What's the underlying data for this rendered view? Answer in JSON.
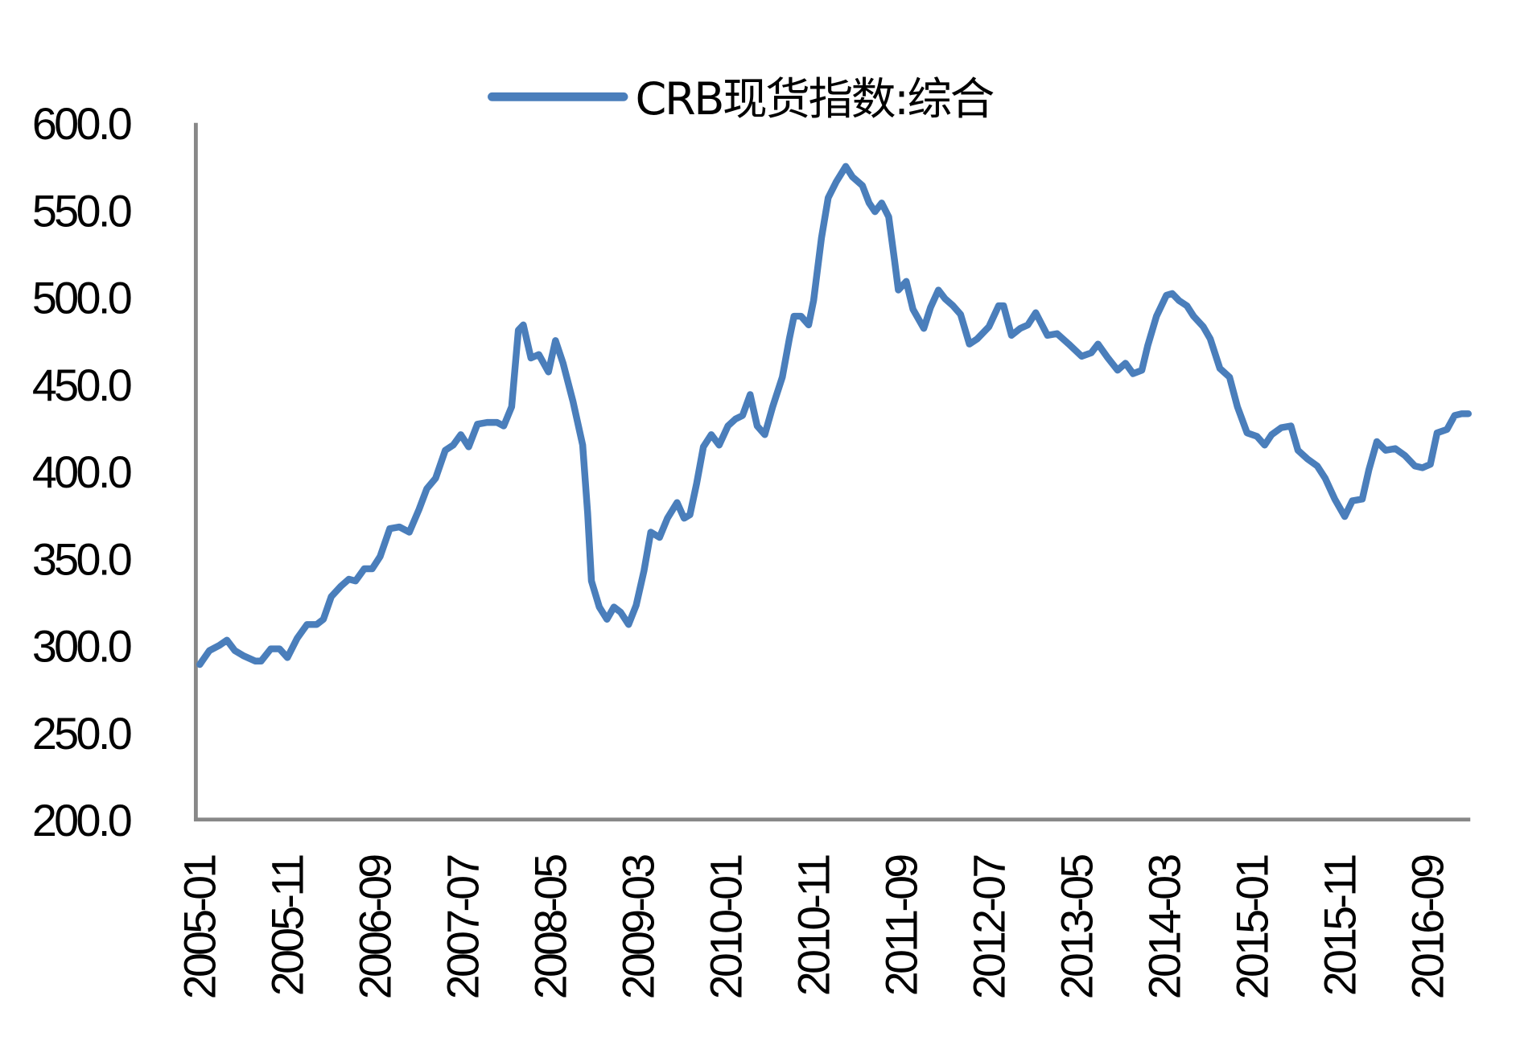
{
  "chart_data": {
    "type": "line",
    "title": "",
    "xlabel": "",
    "ylabel": "",
    "ylim": [
      200,
      600
    ],
    "yticks": [
      "200.0",
      "250.0",
      "300.0",
      "350.0",
      "400.0",
      "450.0",
      "500.0",
      "550.0",
      "600.0"
    ],
    "xticks": [
      "2005-01",
      "2005-11",
      "2006-09",
      "2007-07",
      "2008-05",
      "2009-03",
      "2010-01",
      "2010-11",
      "2011-09",
      "2012-07",
      "2013-05",
      "2014-03",
      "2015-01",
      "2015-11",
      "2016-09"
    ],
    "grid": false,
    "legend_position": "top-center",
    "series": [
      {
        "name": "CRB现货指数:综合",
        "color": "#4a7ebb",
        "dates": [
          "2005-01-01",
          "2005-02-04",
          "2005-03-08",
          "2005-04-04",
          "2005-05-01",
          "2005-06-01",
          "2005-07-11",
          "2005-08-01",
          "2005-09-04",
          "2005-10-04",
          "2005-11-01",
          "2005-12-04",
          "2006-01-08",
          "2006-02-11",
          "2006-03-04",
          "2006-04-01",
          "2006-05-04",
          "2006-06-01",
          "2006-06-24",
          "2006-07-24",
          "2006-08-21",
          "2006-09-18",
          "2006-10-21",
          "2006-11-24",
          "2006-12-28",
          "2007-02-01",
          "2007-02-28",
          "2007-03-28",
          "2007-05-01",
          "2007-05-28",
          "2007-06-24",
          "2007-07-21",
          "2007-08-21",
          "2007-09-24",
          "2007-10-28",
          "2007-11-21",
          "2007-12-18",
          "2008-01-11",
          "2008-01-28",
          "2008-02-24",
          "2008-03-21",
          "2008-04-24",
          "2008-05-18",
          "2008-06-14",
          "2008-07-18",
          "2008-08-21",
          "2008-09-08",
          "2008-09-21",
          "2008-10-18",
          "2008-11-14",
          "2008-12-08",
          "2009-01-01",
          "2009-01-28",
          "2009-02-24",
          "2009-03-21",
          "2009-04-14",
          "2009-05-14",
          "2009-06-11",
          "2009-07-14",
          "2009-08-08",
          "2009-08-28",
          "2009-09-21",
          "2009-10-14",
          "2009-11-11",
          "2009-12-08",
          "2010-01-08",
          "2010-02-04",
          "2010-02-28",
          "2010-03-24",
          "2010-04-18",
          "2010-05-14",
          "2010-06-11",
          "2010-07-14",
          "2010-08-08",
          "2010-08-24",
          "2010-09-18",
          "2010-10-14",
          "2010-11-01",
          "2010-11-28",
          "2010-12-21",
          "2011-01-18",
          "2011-02-21",
          "2011-03-14",
          "2011-04-18",
          "2011-05-11",
          "2011-06-01",
          "2011-06-24",
          "2011-07-18",
          "2011-08-08",
          "2011-08-21",
          "2011-09-18",
          "2011-10-11",
          "2011-11-18",
          "2011-12-11",
          "2012-01-08",
          "2012-02-01",
          "2012-02-28",
          "2012-03-24",
          "2012-04-24",
          "2012-05-21",
          "2012-07-01",
          "2012-08-04",
          "2012-08-21",
          "2012-09-18",
          "2012-10-18",
          "2012-11-14",
          "2012-12-11",
          "2013-01-21",
          "2013-02-24",
          "2013-04-04",
          "2013-05-18",
          "2013-06-21",
          "2013-07-14",
          "2013-08-18",
          "2013-09-21",
          "2013-10-18",
          "2013-11-14",
          "2013-12-14",
          "2014-01-04",
          "2014-02-04",
          "2014-03-08",
          "2014-03-28",
          "2014-04-21",
          "2014-05-18",
          "2014-06-11",
          "2014-07-14",
          "2014-08-08",
          "2014-09-11",
          "2014-10-14",
          "2014-11-11",
          "2014-12-14",
          "2015-01-18",
          "2015-02-14",
          "2015-03-08",
          "2015-04-11",
          "2015-05-14",
          "2015-06-08",
          "2015-07-11",
          "2015-08-14",
          "2015-09-11",
          "2015-10-14",
          "2015-11-18",
          "2015-12-14",
          "2016-01-18",
          "2016-02-11",
          "2016-03-08",
          "2016-04-08",
          "2016-05-11",
          "2016-06-14",
          "2016-07-18",
          "2016-08-14",
          "2016-09-11",
          "2016-10-04",
          "2016-11-08",
          "2016-12-04",
          "2016-12-28",
          "2017-01-21"
        ],
        "values": [
          289,
          297,
          300,
          303,
          297,
          294,
          291,
          291,
          298,
          298,
          293,
          304,
          312,
          312,
          315,
          328,
          334,
          338,
          337,
          344,
          344,
          351,
          367,
          368,
          365,
          378,
          390,
          396,
          412,
          415,
          421,
          414,
          427,
          428,
          428,
          426,
          437,
          481,
          484,
          465,
          467,
          457,
          475,
          462,
          440,
          415,
          376,
          337,
          322,
          315,
          322,
          319,
          312,
          323,
          343,
          365,
          362,
          373,
          382,
          373,
          375,
          393,
          414,
          421,
          415,
          426,
          430,
          432,
          444,
          426,
          421,
          437,
          454,
          476,
          489,
          489,
          484,
          498,
          534,
          557,
          566,
          575,
          569,
          564,
          554,
          549,
          554,
          546,
          521,
          504,
          509,
          493,
          482,
          494,
          504,
          499,
          495,
          490,
          473,
          476,
          483,
          495,
          495,
          478,
          482,
          484,
          491,
          478,
          479,
          473,
          466,
          468,
          473,
          465,
          458,
          462,
          456,
          458,
          472,
          489,
          501,
          502,
          498,
          495,
          489,
          483,
          476,
          459,
          454,
          437,
          422,
          420,
          415,
          421,
          425,
          426,
          412,
          407,
          403,
          396,
          384,
          374,
          383,
          384,
          401,
          417,
          412,
          413,
          409,
          403,
          402,
          404,
          422,
          424,
          432,
          433,
          433
        ]
      }
    ]
  }
}
